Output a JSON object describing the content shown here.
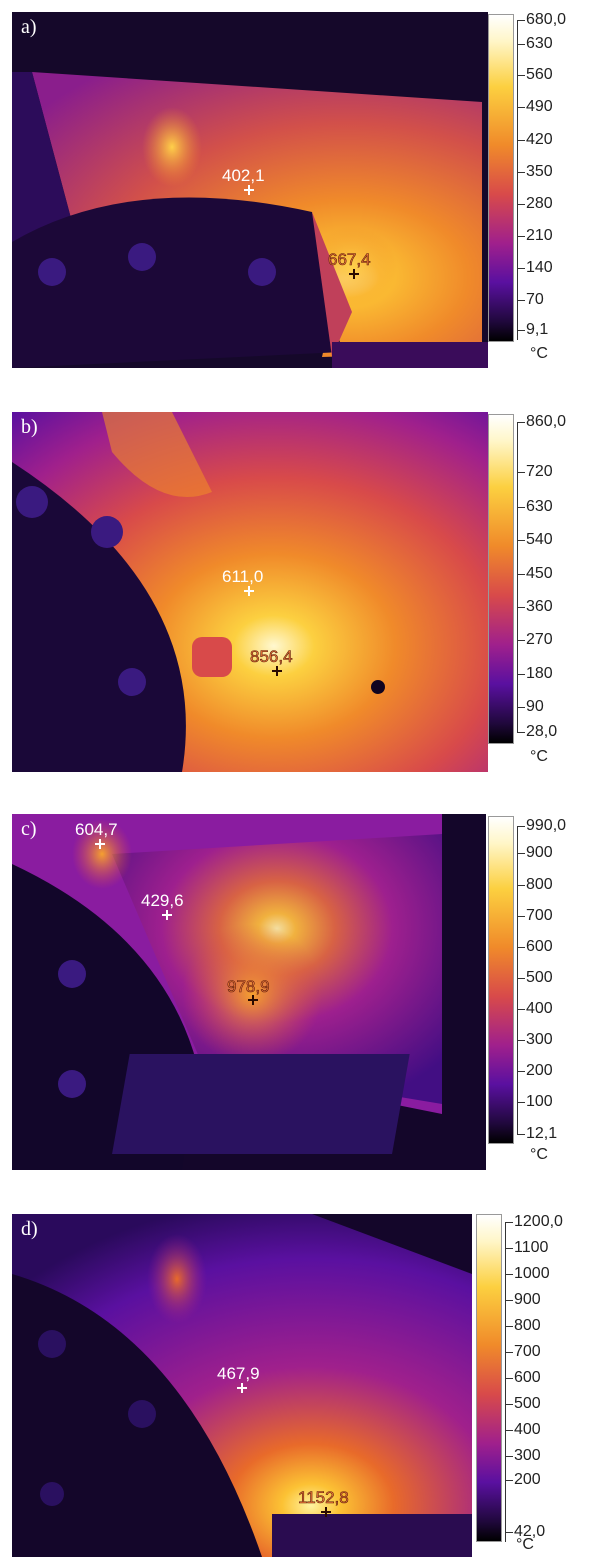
{
  "panels": [
    {
      "label": "a)",
      "measurements": [
        "402,1",
        "667,4"
      ],
      "scale_labels": [
        "680,0",
        "630",
        "560",
        "490",
        "420",
        "350",
        "280",
        "210",
        "140",
        "70",
        "9,1"
      ],
      "unit": "°C"
    },
    {
      "label": "b)",
      "measurements": [
        "611,0",
        "856,4"
      ],
      "scale_labels": [
        "860,0",
        "720",
        "630",
        "540",
        "450",
        "360",
        "270",
        "180",
        "90",
        "28,0"
      ],
      "unit": "°C"
    },
    {
      "label": "c)",
      "measurements": [
        "604,7",
        "429,6",
        "978,9"
      ],
      "scale_labels": [
        "990,0",
        "900",
        "800",
        "700",
        "600",
        "500",
        "400",
        "300",
        "200",
        "100",
        "12,1"
      ],
      "unit": "°C"
    },
    {
      "label": "d)",
      "measurements": [
        "467,9",
        "1152,8"
      ],
      "scale_labels": [
        "1200,0",
        "1100",
        "1000",
        "900",
        "800",
        "700",
        "600",
        "500",
        "400",
        "300",
        "200",
        "42,0"
      ],
      "unit": "°C"
    }
  ],
  "colors": {
    "palette": [
      "#0a0514",
      "#2a0a5c",
      "#5a10a0",
      "#a0208c",
      "#d84a4a",
      "#f08a2a",
      "#fcd040",
      "#fff8d0"
    ]
  }
}
